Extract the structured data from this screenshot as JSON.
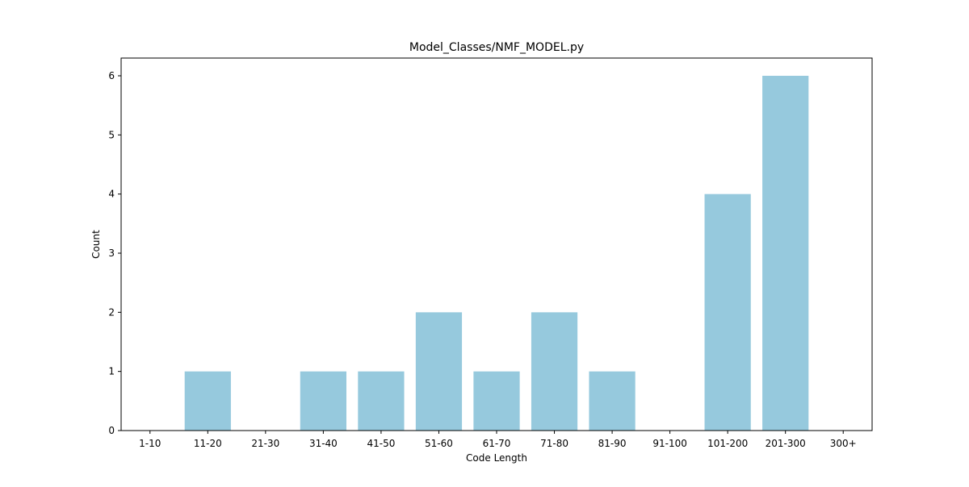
{
  "chart_data": {
    "type": "bar",
    "title": "Model_Classes/NMF_MODEL.py",
    "xlabel": "Code Length",
    "ylabel": "Count",
    "categories": [
      "1-10",
      "11-20",
      "21-30",
      "31-40",
      "41-50",
      "51-60",
      "61-70",
      "71-80",
      "81-90",
      "91-100",
      "101-200",
      "201-300",
      "300+"
    ],
    "values": [
      0,
      1,
      0,
      1,
      1,
      2,
      1,
      2,
      1,
      0,
      4,
      6,
      0
    ],
    "ylim": [
      0,
      6.3
    ],
    "yticks": [
      0,
      1,
      2,
      3,
      4,
      5,
      6
    ],
    "grid": false,
    "legend": "none",
    "bar_color": "#96c9dd"
  }
}
